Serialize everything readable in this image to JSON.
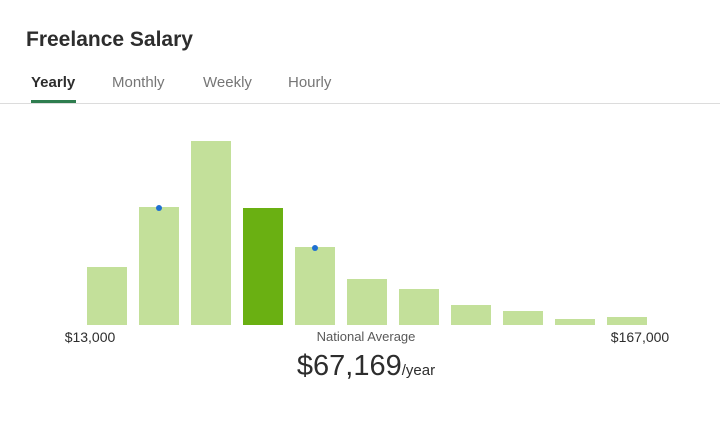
{
  "header": {
    "title": "Freelance Salary"
  },
  "tabs": {
    "items": [
      "Yearly",
      "Monthly",
      "Weekly",
      "Hourly"
    ],
    "active": 0
  },
  "chart_data": {
    "type": "histogram",
    "bins": [
      13000,
      27000,
      41000,
      55000,
      69000,
      83000,
      97000,
      111000,
      125000,
      139000,
      153000,
      167000
    ],
    "values": [
      58,
      118,
      184,
      117,
      78,
      46,
      36,
      20,
      14,
      6,
      8
    ],
    "color": "#c3e09a",
    "highlight_color": "#6ab012",
    "xlim": [
      13000,
      167000
    ],
    "xticks": [
      {
        "value": 13000,
        "label": "$13,000"
      },
      {
        "value": 167000,
        "label": "$167,000"
      }
    ],
    "average": {
      "value": 67169,
      "label": "$67,169",
      "unit": "/year",
      "caption": "National Average"
    }
  }
}
